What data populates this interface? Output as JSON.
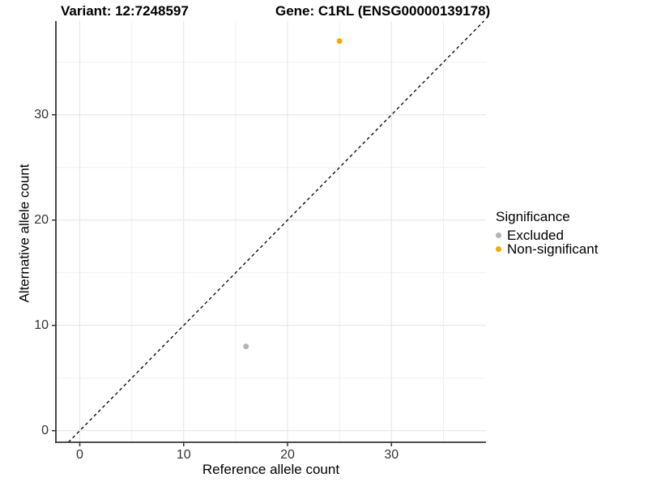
{
  "chart_data": {
    "type": "scatter",
    "title_left": "Variant: 12:7248597",
    "title_right": "Gene: C1RL (ENSG00000139178)",
    "xlabel": "Reference allele count",
    "ylabel": "Alternative allele count",
    "xlim": [
      -2.3,
      39.1
    ],
    "ylim": [
      -1.1,
      38.9
    ],
    "x_ticks": [
      0,
      10,
      20,
      30
    ],
    "y_ticks": [
      0,
      10,
      20,
      30
    ],
    "x_minor_gridlines": [
      5,
      15,
      25,
      35
    ],
    "y_minor_gridlines": [
      5,
      15,
      25,
      35
    ],
    "grid": true,
    "identity_line": {
      "style": "dashed",
      "color": "#000000",
      "equation": "y = x"
    },
    "series": [
      {
        "name": "Excluded",
        "color": "#b3b3b3",
        "points": [
          {
            "x": 16,
            "y": 8
          }
        ]
      },
      {
        "name": "Non-significant",
        "color": "#ffa500",
        "points": [
          {
            "x": 25,
            "y": 37
          }
        ]
      }
    ],
    "legend": {
      "title": "Significance",
      "position": "right",
      "entries": [
        {
          "label": "Excluded",
          "color": "#b3b3b3"
        },
        {
          "label": "Non-significant",
          "color": "#ffa500"
        }
      ]
    },
    "colors": {
      "major_grid": "#e4e4e4",
      "minor_grid": "#efefef",
      "axis_line": "#333333",
      "tick_mark": "#333333",
      "tick_text": "#333333"
    }
  }
}
